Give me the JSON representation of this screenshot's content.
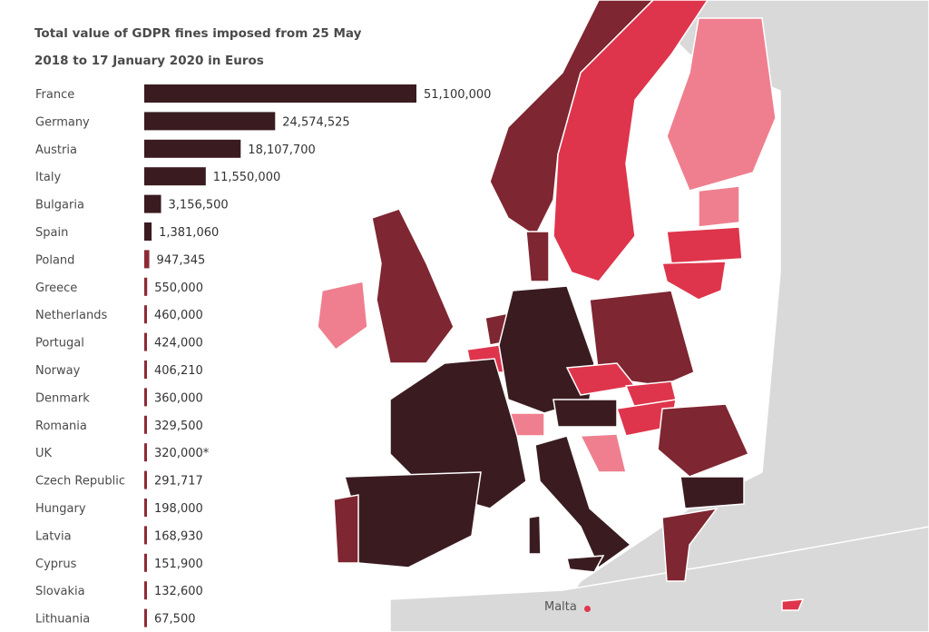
{
  "chart_data": {
    "type": "bar",
    "orientation": "horizontal",
    "title": "Total value of GDPR fines imposed from 25 May 2018 to 17 January 2020 in Euros",
    "categories": [
      "France",
      "Germany",
      "Austria",
      "Italy",
      "Bulgaria",
      "Spain",
      "Poland",
      "Greece",
      "Netherlands",
      "Portugal",
      "Norway",
      "Denmark",
      "Romania",
      "UK",
      "Czech Republic",
      "Hungary",
      "Latvia",
      "Cyprus",
      "Slovakia",
      "Lithuania"
    ],
    "values": [
      51100000,
      24574525,
      18107700,
      11550000,
      3156500,
      1381060,
      947345,
      550000,
      460000,
      424000,
      406210,
      360000,
      329500,
      320000,
      291717,
      198000,
      168930,
      151900,
      132600,
      67500
    ],
    "value_labels": [
      "51,100,000",
      "24,574,525",
      "18,107,700",
      "11,550,000",
      "3,156,500",
      "1,381,060",
      "947,345",
      "550,000",
      "460,000",
      "424,000",
      "406,210",
      "360,000",
      "329,500",
      "320,000*",
      "291,717",
      "198,000",
      "168,930",
      "151,900",
      "132,600",
      "67,500"
    ],
    "colors": {
      "top_tier": "#3a1c20",
      "lower_tier": "#8c2a36",
      "map_land_gray": "#d9d9d9"
    }
  },
  "map": {
    "annotation": "Malta",
    "colors": {
      "very_high": "#3a1c20",
      "high": "#7e2631",
      "medium": "#de354c",
      "low": "#ef7f8f",
      "none": "#d9d9d9",
      "water": "#ffffff"
    }
  }
}
